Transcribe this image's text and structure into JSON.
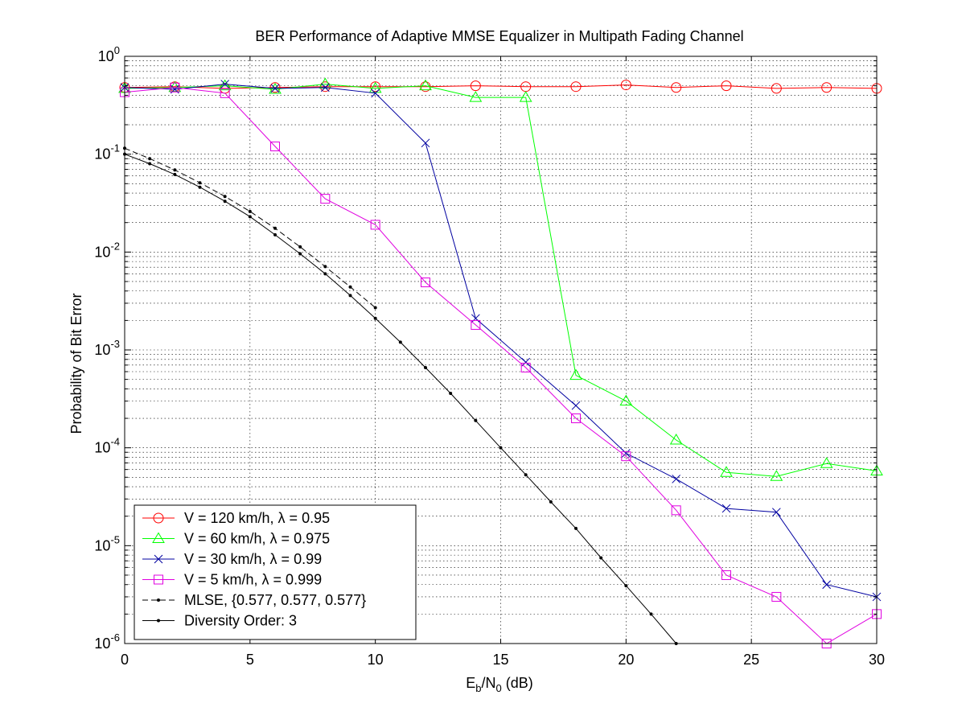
{
  "chart_data": {
    "type": "line",
    "title": "BER Performance of Adaptive MMSE Equalizer in Multipath Fading Channel",
    "xlabel": "E_b/N_0 (dB)",
    "xlabel_parts": {
      "main1": "E",
      "sub1": "b",
      "slash": "/N",
      "sub2": "0",
      "unit": " (dB)"
    },
    "ylabel": "Probability of Bit Error",
    "xlim": [
      0,
      30
    ],
    "ylim": [
      1e-06,
      1
    ],
    "yscale": "log",
    "grid": true,
    "legend_position": "bottom-left",
    "x_ticks": [
      0,
      5,
      10,
      15,
      20,
      25,
      30
    ],
    "x_tick_labels": [
      "0",
      "5",
      "10",
      "15",
      "20",
      "25",
      "30"
    ],
    "y_ticks": [
      {
        "value": 1,
        "base": "10",
        "exp": "0"
      },
      {
        "value": 0.1,
        "base": "10",
        "exp": "-1"
      },
      {
        "value": 0.01,
        "base": "10",
        "exp": "-2"
      },
      {
        "value": 0.001,
        "base": "10",
        "exp": "-3"
      },
      {
        "value": 0.0001,
        "base": "10",
        "exp": "-4"
      },
      {
        "value": 1e-05,
        "base": "10",
        "exp": "-5"
      },
      {
        "value": 1e-06,
        "base": "10",
        "exp": "-6"
      }
    ],
    "series": [
      {
        "name": "V = 120 km/h, λ = 0.95",
        "color": "#ff0000",
        "marker": "circle",
        "dash": "solid",
        "x": [
          0,
          2,
          4,
          6,
          8,
          10,
          12,
          14,
          16,
          18,
          20,
          22,
          24,
          26,
          28,
          30
        ],
        "y": [
          0.48,
          0.49,
          0.47,
          0.48,
          0.49,
          0.49,
          0.49,
          0.5,
          0.49,
          0.49,
          0.51,
          0.48,
          0.5,
          0.47,
          0.48,
          0.47
        ]
      },
      {
        "name": "V = 60 km/h, λ = 0.975",
        "color": "#00ff00",
        "marker": "triangle",
        "dash": "solid",
        "x": [
          0,
          2,
          4,
          6,
          8,
          10,
          12,
          14,
          16,
          18,
          20,
          22,
          24,
          26,
          28,
          30
        ],
        "y": [
          0.47,
          0.48,
          0.5,
          0.46,
          0.52,
          0.47,
          0.5,
          0.38,
          0.38,
          0.00055,
          0.0003,
          0.00012,
          5.6e-05,
          5.1e-05,
          6.9e-05,
          5.8e-05
        ]
      },
      {
        "name": "V = 30 km/h, λ = 0.99",
        "color": "#0000a0",
        "marker": "x",
        "dash": "solid",
        "x": [
          0,
          2,
          4,
          6,
          8,
          10,
          12,
          14,
          16,
          18,
          20,
          22,
          24,
          26,
          28,
          30
        ],
        "y": [
          0.48,
          0.46,
          0.52,
          0.47,
          0.48,
          0.42,
          0.13,
          0.0021,
          0.00075,
          0.00027,
          8.8e-05,
          4.8e-05,
          2.4e-05,
          2.2e-05,
          4e-06,
          3e-06
        ]
      },
      {
        "name": "V = 5 km/h, λ = 0.999",
        "color": "#e000e0",
        "marker": "square",
        "dash": "solid",
        "x": [
          0,
          2,
          4,
          6,
          8,
          10,
          12,
          14,
          16,
          18,
          20,
          22,
          24,
          26,
          28,
          30
        ],
        "y": [
          0.43,
          0.48,
          0.42,
          0.12,
          0.035,
          0.019,
          0.0049,
          0.0018,
          0.00066,
          0.0002,
          8.2e-05,
          2.3e-05,
          5e-06,
          3e-06,
          1e-06,
          2e-06
        ]
      },
      {
        "name": "MLSE, {0.577, 0.577, 0.577}",
        "color": "#000000",
        "marker": "dot",
        "dash": "dashed",
        "x": [
          0,
          1,
          2,
          3,
          4,
          5,
          6,
          7,
          8,
          9,
          10
        ],
        "y": [
          0.115,
          0.09,
          0.069,
          0.051,
          0.037,
          0.026,
          0.0175,
          0.0113,
          0.0071,
          0.0044,
          0.0027
        ]
      },
      {
        "name": "Diversity Order: 3",
        "color": "#000000",
        "marker": "dot",
        "dash": "solid",
        "x": [
          0,
          1,
          2,
          3,
          4,
          5,
          6,
          7,
          8,
          9,
          10,
          11,
          12,
          13,
          14,
          15,
          16,
          17,
          18,
          19,
          20,
          21,
          22
        ],
        "y": [
          0.1,
          0.08,
          0.062,
          0.046,
          0.033,
          0.023,
          0.015,
          0.0096,
          0.006,
          0.0036,
          0.0021,
          0.0012,
          0.00066,
          0.00036,
          0.00019,
          0.0001,
          5.3e-05,
          2.8e-05,
          1.5e-05,
          7.5e-06,
          3.9e-06,
          2e-06,
          1e-06
        ]
      }
    ]
  }
}
